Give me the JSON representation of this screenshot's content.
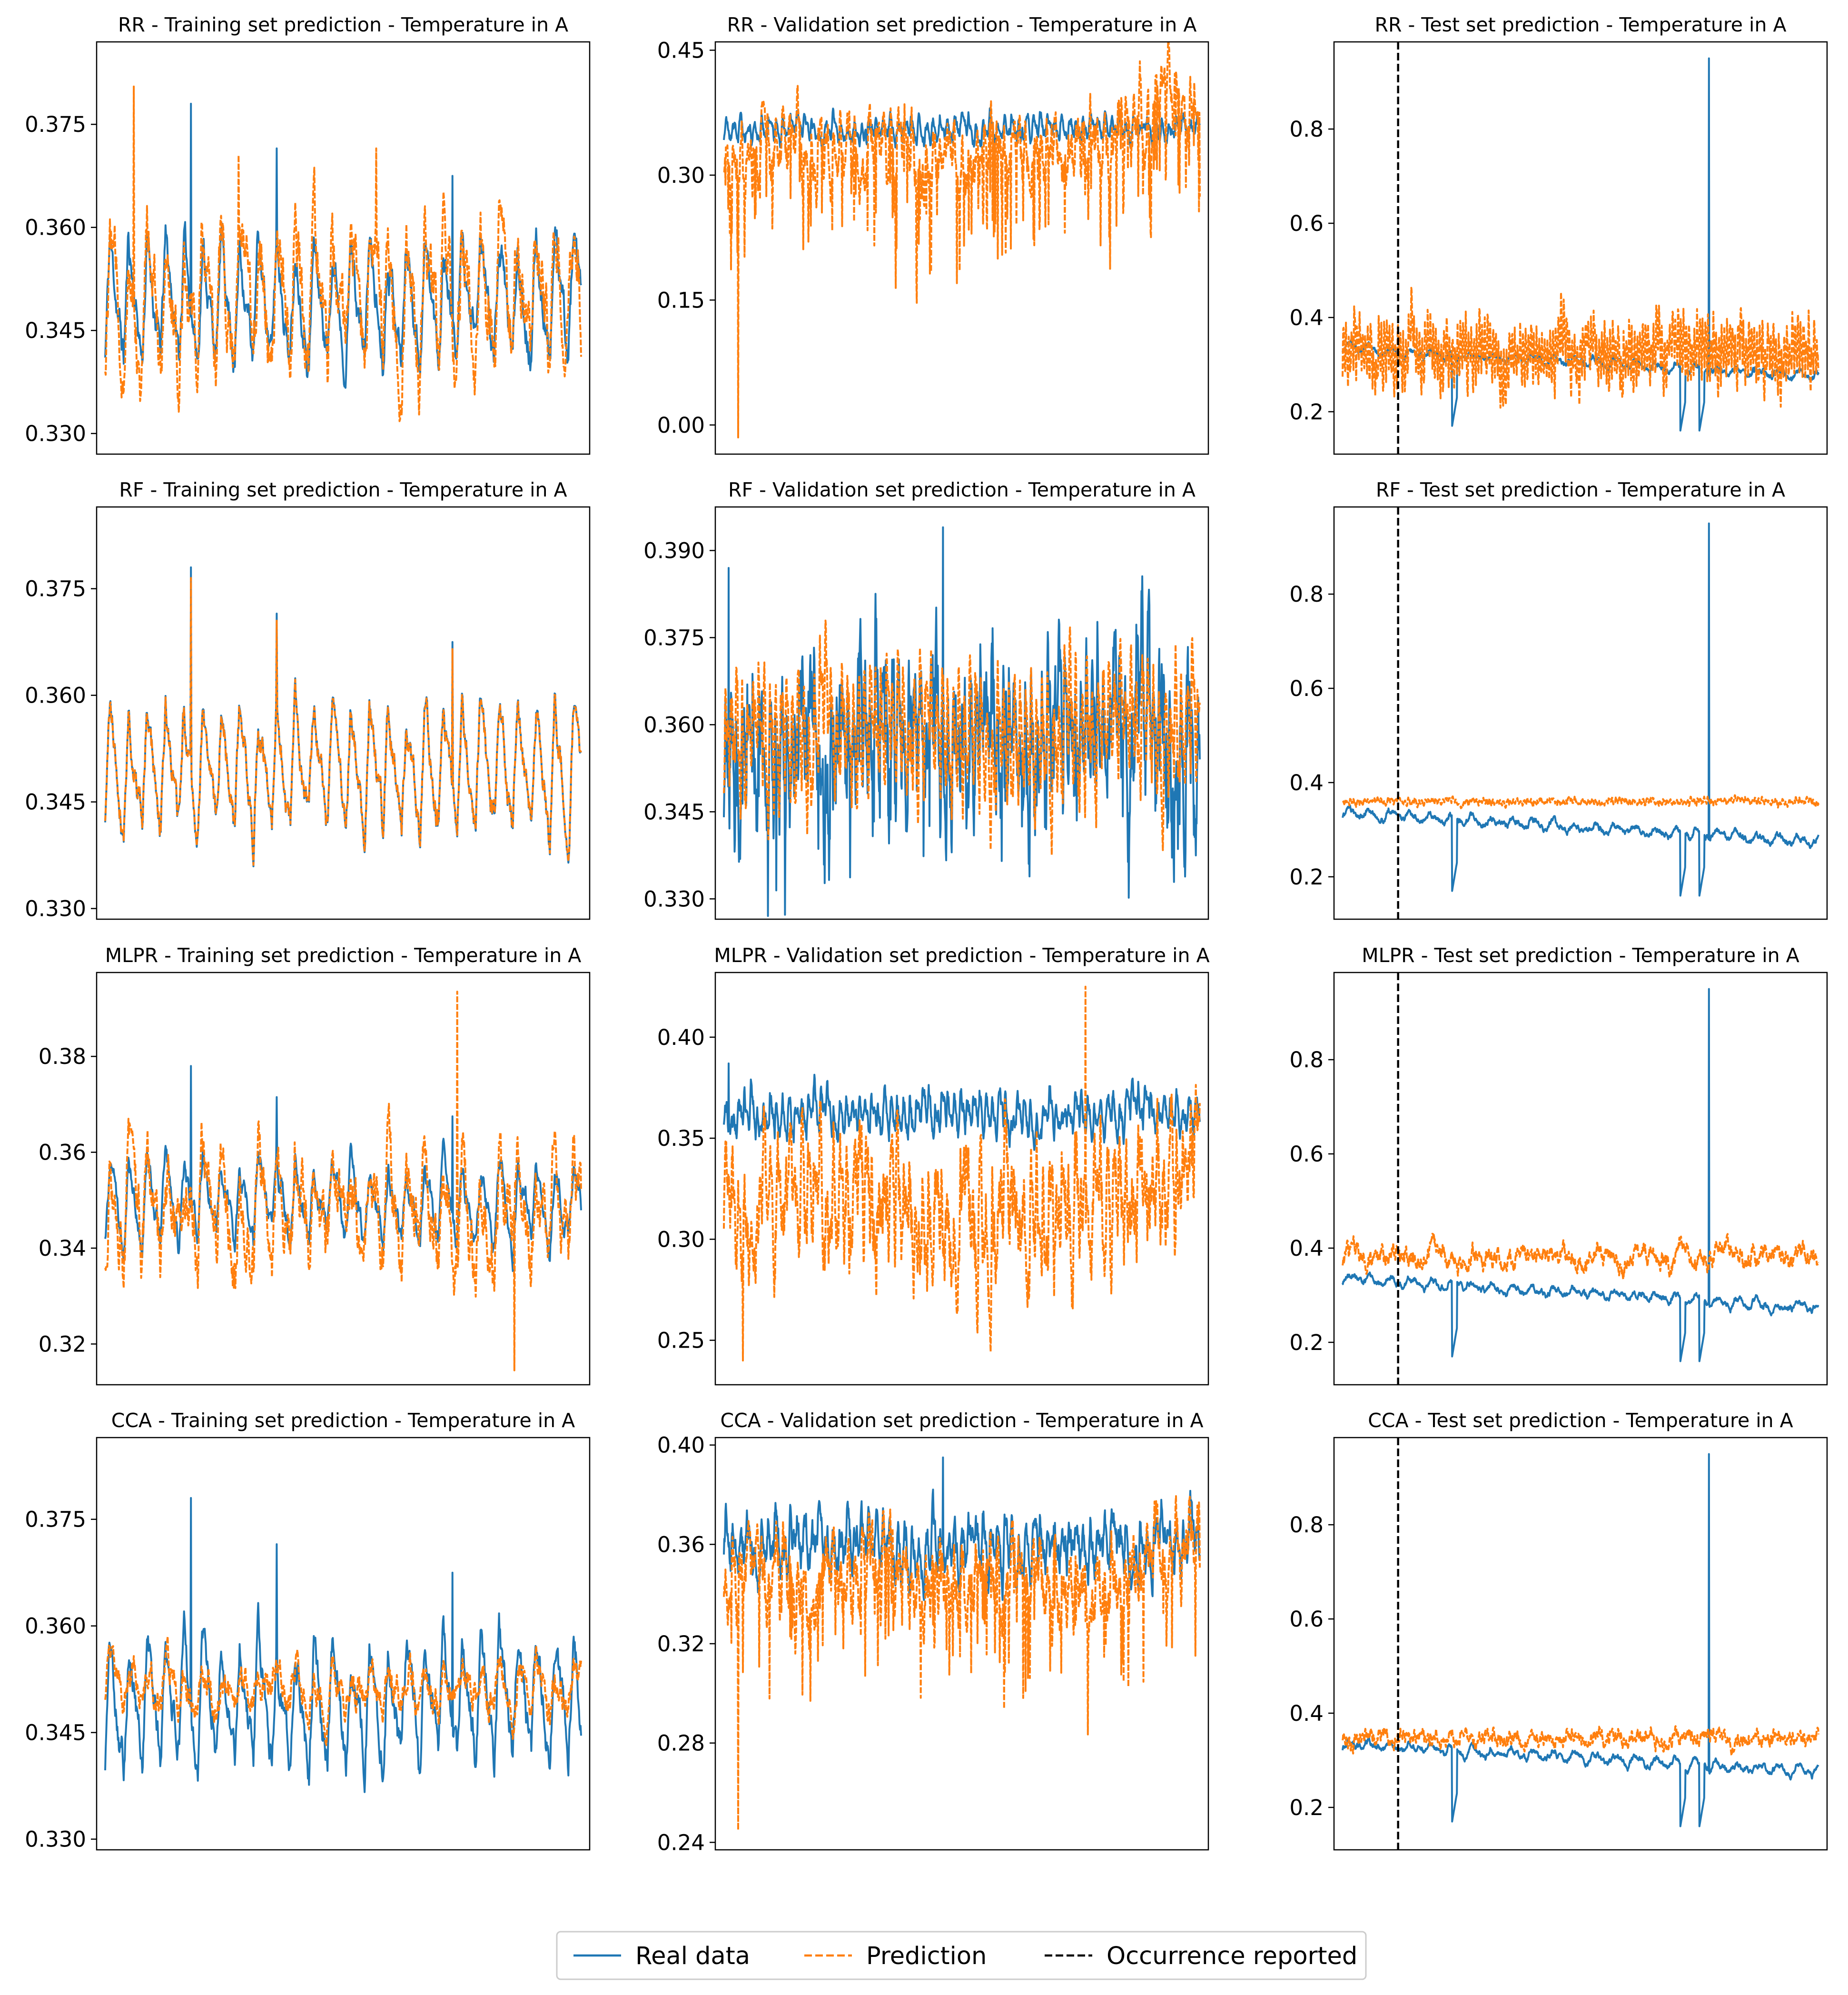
{
  "figure": {
    "colors": {
      "real": "#1f77b4",
      "prediction": "#ff7f0e",
      "occurrence": "#000000"
    },
    "legend": {
      "placement": "bottom-center",
      "entries": [
        {
          "label": "Real data",
          "style": "solid",
          "color": "#1f77b4"
        },
        {
          "label": "Prediction",
          "style": "dashed",
          "color": "#ff7f0e"
        },
        {
          "label": "Occurrence reported",
          "style": "dashed",
          "color": "#000000"
        }
      ]
    }
  },
  "chart_data": [
    {
      "type": "line",
      "title": "RR - Training set prediction - Temperature in A",
      "ylim": [
        0.327,
        0.387
      ],
      "yticks": [
        0.33,
        0.345,
        0.36,
        0.375
      ],
      "ytick_labels": [
        "0.330",
        "0.345",
        "0.360",
        "0.375"
      ],
      "n_points": 900,
      "series": [
        {
          "name": "Real data",
          "base": 0.3495,
          "amplitude": 0.0085,
          "noise": 0.0018,
          "period": 35,
          "seed": 11,
          "spikes": [
            [
              0.18,
              0.0285
            ],
            [
              0.36,
              0.022
            ],
            [
              0.73,
              0.018
            ]
          ]
        },
        {
          "name": "Prediction",
          "base": 0.3505,
          "amplitude": 0.01,
          "noise": 0.0035,
          "period": 35,
          "seed": 12,
          "spikes": [
            [
              0.06,
              0.03
            ],
            [
              0.28,
              0.02
            ],
            [
              0.57,
              0.021
            ]
          ]
        }
      ]
    },
    {
      "type": "line",
      "title": "RR - Validation set prediction - Temperature in A",
      "ylim": [
        -0.035,
        0.46
      ],
      "yticks": [
        0.0,
        0.15,
        0.3,
        0.45
      ],
      "ytick_labels": [
        "0.00",
        "0.15",
        "0.30",
        "0.45"
      ],
      "n_points": 1200,
      "series": [
        {
          "name": "Real data",
          "base": 0.355,
          "amplitude": 0.012,
          "noise": 0.006,
          "period": 18,
          "seed": 21,
          "spikes": []
        },
        {
          "name": "Prediction",
          "base": 0.325,
          "amplitude": 0.025,
          "noise": 0.02,
          "period": 18,
          "seed": 22,
          "drops": 0.08,
          "drop_depth": 0.12,
          "trend_end": 0.08,
          "spikes": [
            [
              0.03,
              -0.34
            ]
          ]
        }
      ]
    },
    {
      "type": "line",
      "title": "RR - Test set prediction - Temperature in A",
      "ylim": [
        0.11,
        0.985
      ],
      "yticks": [
        0.2,
        0.4,
        0.6,
        0.8
      ],
      "ytick_labels": [
        "0.2",
        "0.4",
        "0.6",
        "0.8"
      ],
      "n_points": 1400,
      "occurrence_x": 0.13,
      "series": [
        {
          "name": "Real data",
          "base": 0.335,
          "amplitude": 0.01,
          "noise": 0.004,
          "period": 60,
          "seed": 31,
          "decline": 0.06,
          "spikes": [
            [
              0.77,
              0.615
            ]
          ],
          "dips": [
            [
              0.23,
              0.24,
              0.17
            ],
            [
              0.71,
              0.72,
              0.16
            ],
            [
              0.75,
              0.76,
              0.16
            ]
          ]
        },
        {
          "name": "Prediction",
          "base": 0.33,
          "amplitude": 0.05,
          "noise": 0.025,
          "period": 8,
          "seed": 32,
          "spikes": []
        }
      ]
    },
    {
      "type": "line",
      "title": "RF - Training set prediction - Temperature in A",
      "ylim": [
        0.3285,
        0.3865
      ],
      "yticks": [
        0.33,
        0.345,
        0.36,
        0.375
      ],
      "ytick_labels": [
        "0.330",
        "0.345",
        "0.360",
        "0.375"
      ],
      "n_points": 900,
      "series": [
        {
          "name": "Real data",
          "base": 0.3495,
          "amplitude": 0.0085,
          "noise": 0.0016,
          "period": 35,
          "seed": 41,
          "spikes": [
            [
              0.18,
              0.0285
            ],
            [
              0.36,
              0.022
            ],
            [
              0.73,
              0.018
            ]
          ]
        },
        {
          "name": "Prediction",
          "base": 0.3495,
          "amplitude": 0.0083,
          "noise": 0.0016,
          "period": 35,
          "seed": 41,
          "spikes": [
            [
              0.18,
              0.027
            ],
            [
              0.36,
              0.021
            ],
            [
              0.73,
              0.017
            ]
          ]
        }
      ]
    },
    {
      "type": "line",
      "title": "RF - Validation set prediction - Temperature in A",
      "ylim": [
        0.3265,
        0.3975
      ],
      "yticks": [
        0.33,
        0.345,
        0.36,
        0.375,
        0.39
      ],
      "ytick_labels": [
        "0.330",
        "0.345",
        "0.360",
        "0.375",
        "0.390"
      ],
      "n_points": 1200,
      "series": [
        {
          "name": "Real data",
          "base": 0.357,
          "amplitude": 0.008,
          "noise": 0.007,
          "period": 14,
          "seed": 51,
          "drops": 0.05,
          "drop_depth": 0.015,
          "spikes": [
            [
              0.46,
              0.037
            ],
            [
              0.01,
              0.03
            ]
          ]
        },
        {
          "name": "Prediction",
          "base": 0.3595,
          "amplitude": 0.009,
          "noise": 0.004,
          "period": 14,
          "seed": 52,
          "spikes": []
        }
      ]
    },
    {
      "type": "line",
      "title": "RF - Test set prediction - Temperature in A",
      "ylim": [
        0.11,
        0.985
      ],
      "yticks": [
        0.2,
        0.4,
        0.6,
        0.8
      ],
      "ytick_labels": [
        "0.2",
        "0.4",
        "0.6",
        "0.8"
      ],
      "n_points": 1400,
      "occurrence_x": 0.13,
      "series": [
        {
          "name": "Real data",
          "base": 0.335,
          "amplitude": 0.01,
          "noise": 0.004,
          "period": 60,
          "seed": 61,
          "decline": 0.06,
          "spikes": [
            [
              0.77,
              0.615
            ]
          ],
          "dips": [
            [
              0.23,
              0.24,
              0.17
            ],
            [
              0.71,
              0.72,
              0.16
            ],
            [
              0.75,
              0.76,
              0.16
            ]
          ]
        },
        {
          "name": "Prediction",
          "base": 0.36,
          "amplitude": 0.004,
          "noise": 0.004,
          "period": 10,
          "seed": 62,
          "spikes": []
        }
      ]
    },
    {
      "type": "line",
      "title": "MLPR - Training set prediction - Temperature in A",
      "ylim": [
        0.3115,
        0.3975
      ],
      "yticks": [
        0.32,
        0.34,
        0.36,
        0.38
      ],
      "ytick_labels": [
        "0.32",
        "0.34",
        "0.36",
        "0.38"
      ],
      "n_points": 900,
      "series": [
        {
          "name": "Real data",
          "base": 0.3495,
          "amplitude": 0.0085,
          "noise": 0.0018,
          "period": 35,
          "seed": 71,
          "spikes": [
            [
              0.18,
              0.0285
            ],
            [
              0.36,
              0.022
            ],
            [
              0.73,
              0.018
            ]
          ]
        },
        {
          "name": "Prediction",
          "base": 0.3485,
          "amplitude": 0.01,
          "noise": 0.0045,
          "period": 35,
          "seed": 72,
          "spikes": [
            [
              0.74,
              0.045
            ],
            [
              0.86,
              -0.034
            ]
          ]
        }
      ]
    },
    {
      "type": "line",
      "title": "MLPR - Validation set prediction - Temperature in A",
      "ylim": [
        0.228,
        0.432
      ],
      "yticks": [
        0.25,
        0.3,
        0.35,
        0.4
      ],
      "ytick_labels": [
        "0.25",
        "0.30",
        "0.35",
        "0.40"
      ],
      "n_points": 1200,
      "series": [
        {
          "name": "Real data",
          "base": 0.362,
          "amplitude": 0.008,
          "noise": 0.004,
          "period": 16,
          "seed": 81,
          "spikes": [
            [
              0.01,
              0.025
            ]
          ]
        },
        {
          "name": "Prediction",
          "base": 0.315,
          "amplitude": 0.018,
          "noise": 0.016,
          "period": 16,
          "seed": 82,
          "trend_end": 0.035,
          "spikes": [
            [
              0.04,
              -0.075
            ],
            [
              0.76,
              0.11
            ]
          ]
        }
      ]
    },
    {
      "type": "line",
      "title": "MLPR - Test set prediction - Temperature in A",
      "ylim": [
        0.11,
        0.985
      ],
      "yticks": [
        0.2,
        0.4,
        0.6,
        0.8
      ],
      "ytick_labels": [
        "0.2",
        "0.4",
        "0.6",
        "0.8"
      ],
      "n_points": 1400,
      "occurrence_x": 0.13,
      "series": [
        {
          "name": "Real data",
          "base": 0.335,
          "amplitude": 0.01,
          "noise": 0.004,
          "period": 60,
          "seed": 91,
          "decline": 0.06,
          "spikes": [
            [
              0.77,
              0.615
            ]
          ],
          "dips": [
            [
              0.23,
              0.24,
              0.17
            ],
            [
              0.71,
              0.72,
              0.16
            ],
            [
              0.75,
              0.76,
              0.16
            ]
          ]
        },
        {
          "name": "Prediction",
          "base": 0.38,
          "amplitude": 0.015,
          "noise": 0.012,
          "period": 120,
          "seed": 92,
          "spikes": []
        }
      ]
    },
    {
      "type": "line",
      "title": "CCA - Training set prediction - Temperature in A",
      "ylim": [
        0.3285,
        0.3865
      ],
      "yticks": [
        0.33,
        0.345,
        0.36,
        0.375
      ],
      "ytick_labels": [
        "0.330",
        "0.345",
        "0.360",
        "0.375"
      ],
      "n_points": 900,
      "series": [
        {
          "name": "Real data",
          "base": 0.3495,
          "amplitude": 0.0085,
          "noise": 0.0018,
          "period": 35,
          "seed": 101,
          "spikes": [
            [
              0.18,
              0.0285
            ],
            [
              0.36,
              0.022
            ],
            [
              0.73,
              0.018
            ]
          ]
        },
        {
          "name": "Prediction",
          "base": 0.3515,
          "amplitude": 0.0025,
          "noise": 0.0016,
          "period": 35,
          "seed": 102,
          "spikes": []
        }
      ]
    },
    {
      "type": "line",
      "title": "CCA - Validation set prediction - Temperature in A",
      "ylim": [
        0.237,
        0.403
      ],
      "yticks": [
        0.24,
        0.28,
        0.32,
        0.36,
        0.4
      ],
      "ytick_labels": [
        "0.24",
        "0.28",
        "0.32",
        "0.36",
        "0.40"
      ],
      "n_points": 1200,
      "series": [
        {
          "name": "Real data",
          "base": 0.36,
          "amplitude": 0.009,
          "noise": 0.005,
          "period": 18,
          "seed": 111,
          "spikes": [
            [
              0.46,
              0.035
            ]
          ]
        },
        {
          "name": "Prediction",
          "base": 0.345,
          "amplitude": 0.008,
          "noise": 0.008,
          "period": 18,
          "seed": 112,
          "drops": 0.06,
          "drop_depth": 0.04,
          "trend_end": 0.02,
          "spikes": [
            [
              0.03,
              -0.1
            ]
          ]
        }
      ]
    },
    {
      "type": "line",
      "title": "CCA - Test set prediction - Temperature in A",
      "ylim": [
        0.11,
        0.985
      ],
      "yticks": [
        0.2,
        0.4,
        0.6,
        0.8
      ],
      "ytick_labels": [
        "0.2",
        "0.4",
        "0.6",
        "0.8"
      ],
      "n_points": 1400,
      "occurrence_x": 0.13,
      "series": [
        {
          "name": "Real data",
          "base": 0.335,
          "amplitude": 0.01,
          "noise": 0.004,
          "period": 60,
          "seed": 121,
          "decline": 0.06,
          "spikes": [
            [
              0.77,
              0.615
            ]
          ],
          "dips": [
            [
              0.23,
              0.24,
              0.17
            ],
            [
              0.71,
              0.72,
              0.16
            ],
            [
              0.75,
              0.76,
              0.16
            ]
          ]
        },
        {
          "name": "Prediction",
          "base": 0.345,
          "amplitude": 0.006,
          "noise": 0.008,
          "period": 8,
          "seed": 122,
          "spikes": []
        }
      ]
    }
  ]
}
